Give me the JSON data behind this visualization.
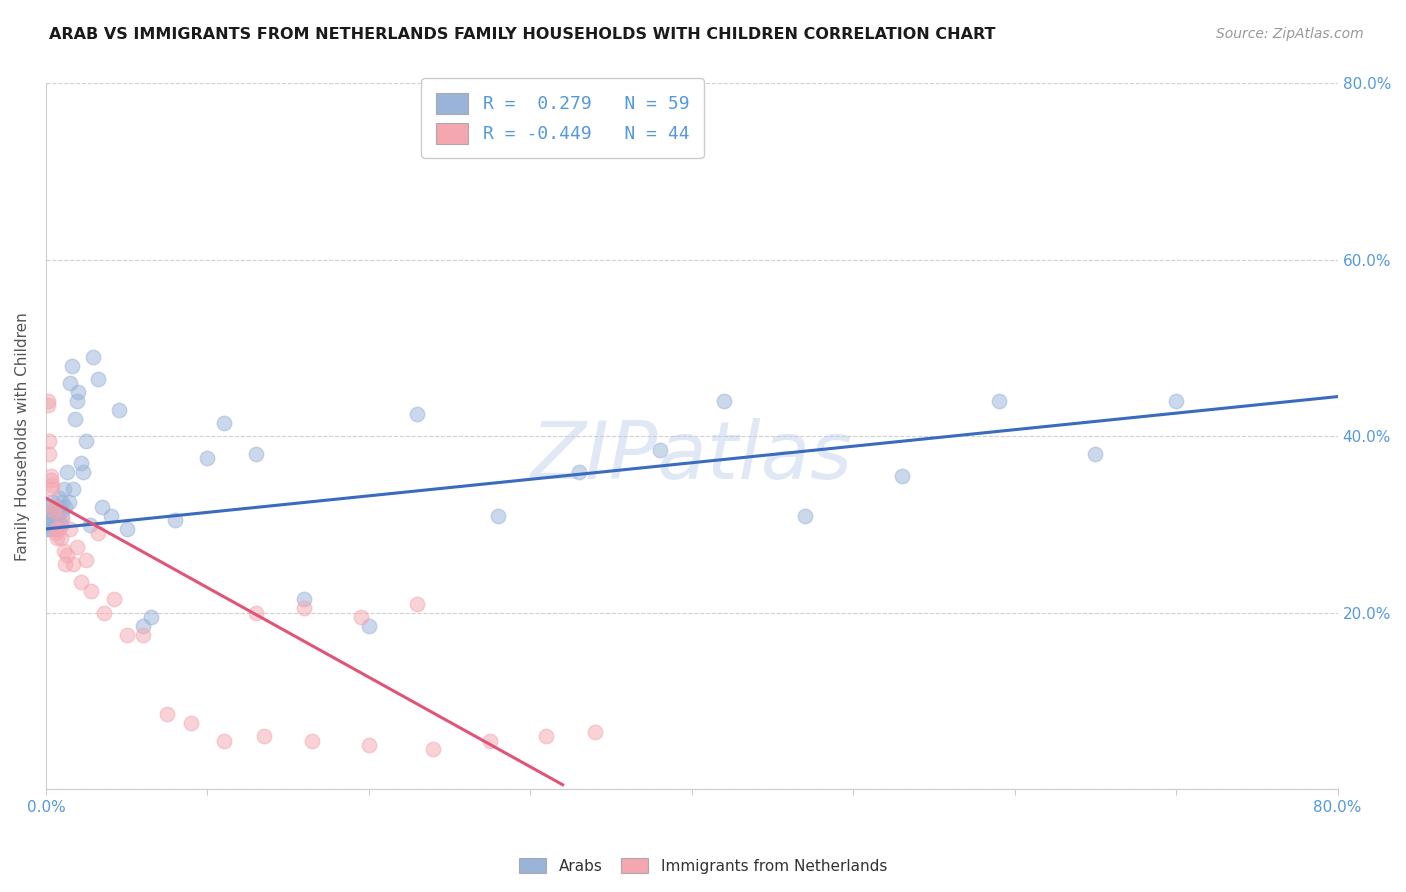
{
  "title": "ARAB VS IMMIGRANTS FROM NETHERLANDS FAMILY HOUSEHOLDS WITH CHILDREN CORRELATION CHART",
  "source": "Source: ZipAtlas.com",
  "ylabel": "Family Households with Children",
  "xlim": [
    0,
    0.8
  ],
  "ylim": [
    0,
    0.8
  ],
  "background_color": "#ffffff",
  "grid_color": "#d0d0d0",
  "blue_color": "#99b3d9",
  "pink_color": "#f4a7b0",
  "line_blue": "#3a6bbf",
  "line_pink": "#e05577",
  "tick_color": "#5599dd",
  "watermark": "ZIPatlas",
  "arab_x": [
    0.001,
    0.001,
    0.002,
    0.002,
    0.003,
    0.003,
    0.004,
    0.004,
    0.005,
    0.005,
    0.006,
    0.006,
    0.007,
    0.007,
    0.008,
    0.008,
    0.008,
    0.009,
    0.009,
    0.01,
    0.01,
    0.011,
    0.012,
    0.013,
    0.014,
    0.015,
    0.016,
    0.017,
    0.018,
    0.019,
    0.02,
    0.022,
    0.023,
    0.025,
    0.027,
    0.029,
    0.032,
    0.035,
    0.04,
    0.045,
    0.05,
    0.06,
    0.065,
    0.08,
    0.1,
    0.11,
    0.13,
    0.16,
    0.2,
    0.23,
    0.28,
    0.33,
    0.38,
    0.42,
    0.47,
    0.53,
    0.59,
    0.65,
    0.7
  ],
  "arab_y": [
    0.295,
    0.31,
    0.3,
    0.32,
    0.295,
    0.315,
    0.305,
    0.325,
    0.3,
    0.31,
    0.295,
    0.315,
    0.3,
    0.31,
    0.305,
    0.32,
    0.33,
    0.3,
    0.315,
    0.31,
    0.325,
    0.34,
    0.32,
    0.36,
    0.325,
    0.46,
    0.48,
    0.34,
    0.42,
    0.44,
    0.45,
    0.37,
    0.36,
    0.395,
    0.3,
    0.49,
    0.465,
    0.32,
    0.31,
    0.43,
    0.295,
    0.185,
    0.195,
    0.305,
    0.375,
    0.415,
    0.38,
    0.215,
    0.185,
    0.425,
    0.31,
    0.36,
    0.385,
    0.44,
    0.31,
    0.355,
    0.44,
    0.38,
    0.44
  ],
  "netherlands_x": [
    0.001,
    0.001,
    0.002,
    0.002,
    0.003,
    0.003,
    0.004,
    0.004,
    0.005,
    0.005,
    0.006,
    0.006,
    0.007,
    0.008,
    0.009,
    0.01,
    0.011,
    0.012,
    0.013,
    0.015,
    0.017,
    0.019,
    0.022,
    0.025,
    0.028,
    0.032,
    0.036,
    0.042,
    0.05,
    0.06,
    0.075,
    0.09,
    0.11,
    0.135,
    0.165,
    0.2,
    0.24,
    0.275,
    0.31,
    0.34,
    0.13,
    0.16,
    0.195,
    0.23
  ],
  "netherlands_y": [
    0.435,
    0.44,
    0.395,
    0.38,
    0.35,
    0.355,
    0.345,
    0.34,
    0.32,
    0.315,
    0.295,
    0.29,
    0.285,
    0.295,
    0.285,
    0.305,
    0.27,
    0.255,
    0.265,
    0.295,
    0.255,
    0.275,
    0.235,
    0.26,
    0.225,
    0.29,
    0.2,
    0.215,
    0.175,
    0.175,
    0.085,
    0.075,
    0.055,
    0.06,
    0.055,
    0.05,
    0.045,
    0.055,
    0.06,
    0.065,
    0.2,
    0.205,
    0.195,
    0.21
  ],
  "arab_line_x": [
    0.0,
    0.8
  ],
  "arab_line_y": [
    0.295,
    0.445
  ],
  "neth_line_x": [
    0.0,
    0.32
  ],
  "neth_line_y": [
    0.33,
    0.005
  ]
}
